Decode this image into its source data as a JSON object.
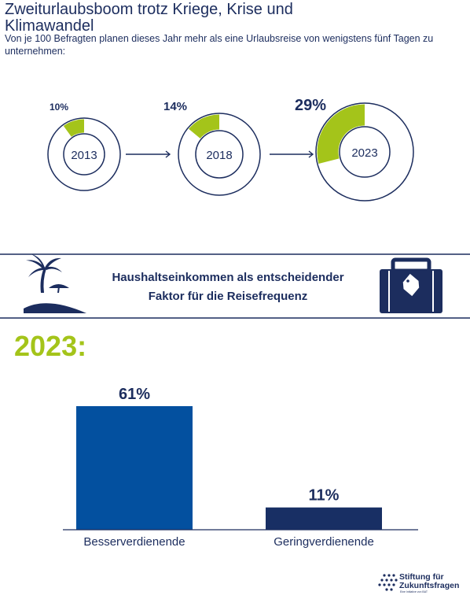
{
  "title": "Zweiturlaubsboom trotz Kriege, Krise und Klimawandel",
  "subtitle": "Von je 100 Befragten planen dieses Jahr mehr als eine Urlaubsreise von wenigstens fünf Tagen zu unternehmen:",
  "band_title_line1": "Haushaltseinkommen als entscheidender",
  "band_title_line2": "Faktor für die Reisefrequenz",
  "year_heading": "2023:",
  "logo_line1": "Stiftung für",
  "logo_line2": "Zukunftsfragen",
  "logo_tagline": "Eine Initiative von BAT",
  "icons": [
    "palm-tree-icon",
    "suitcase-icon",
    "arrow-right-icon"
  ],
  "colors": {
    "navy": "#1c2d5e",
    "green": "#a4c41a",
    "blue": "#03509f",
    "dark_navy": "#182f64"
  },
  "chart_data": [
    {
      "type": "pie",
      "categories": [
        "2013",
        "2018",
        "2023"
      ],
      "values": [
        10,
        14,
        29
      ],
      "data_labels": [
        "10%",
        "14%",
        "29%"
      ],
      "unit": "%"
    },
    {
      "type": "bar",
      "categories": [
        "Besserverdienende",
        "Geringverdienende"
      ],
      "values": [
        61,
        11
      ],
      "data_labels": [
        "61%",
        "11%"
      ],
      "unit": "%"
    }
  ]
}
